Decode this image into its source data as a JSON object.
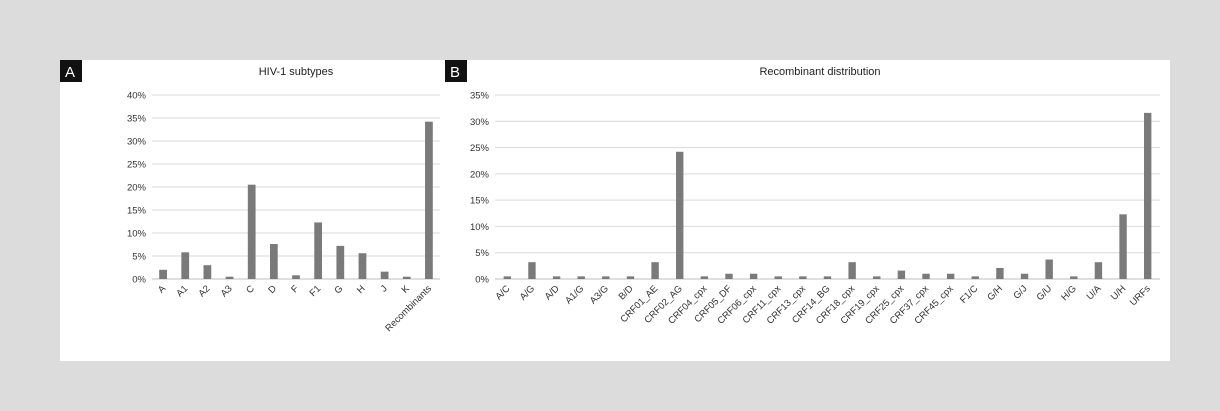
{
  "panels": [
    {
      "letter": "A",
      "title": "HIV-1 subtypes"
    },
    {
      "letter": "B",
      "title": "Recombinant distribution"
    }
  ],
  "chart_data": [
    {
      "type": "bar",
      "title": "HIV-1 subtypes",
      "xlabel": "",
      "ylabel": "",
      "categories": [
        "A",
        "A1",
        "A2",
        "A3",
        "C",
        "D",
        "F",
        "F1",
        "G",
        "H",
        "J",
        "K",
        "Recombinants"
      ],
      "values": [
        2.0,
        5.8,
        3.0,
        0.5,
        20.5,
        7.6,
        0.8,
        12.3,
        7.2,
        5.6,
        1.6,
        0.5,
        34.2
      ],
      "ylim": [
        0,
        40
      ],
      "yticks": [
        0,
        5,
        10,
        15,
        20,
        25,
        30,
        35,
        40
      ],
      "ytick_labels": [
        "0%",
        "5%",
        "10%",
        "15%",
        "20%",
        "25%",
        "30%",
        "35%",
        "40%"
      ],
      "grid": true,
      "bar_color": "#7a7a7a"
    },
    {
      "type": "bar",
      "title": "Recombinant distribution",
      "xlabel": "",
      "ylabel": "",
      "categories": [
        "A/C",
        "A/G",
        "A/D",
        "A1/G",
        "A3/G",
        "B/D",
        "CRF01_AE",
        "CRF02_AG",
        "CRF04_cpx",
        "CRF05_DF",
        "CRF06_cpx",
        "CRF11_cpx",
        "CRF13_cpx",
        "CRF14_BG",
        "CRF18_cpx",
        "CRF19_cpx",
        "CRF25_cpx",
        "CRF37_cpx",
        "CRF45_cpx",
        "F1/C",
        "G/H",
        "G/J",
        "G/U",
        "H/G",
        "U/A",
        "U/H",
        "URFs"
      ],
      "values": [
        0.5,
        3.2,
        0.5,
        0.5,
        0.5,
        0.5,
        3.2,
        24.2,
        0.5,
        1.0,
        1.0,
        0.5,
        0.5,
        0.5,
        3.2,
        0.5,
        1.6,
        1.0,
        1.0,
        0.5,
        2.1,
        1.0,
        3.7,
        0.5,
        3.2,
        12.3,
        31.6
      ],
      "ylim": [
        0,
        35
      ],
      "yticks": [
        0,
        5,
        10,
        15,
        20,
        25,
        30,
        35
      ],
      "ytick_labels": [
        "0%",
        "5%",
        "10%",
        "15%",
        "20%",
        "25%",
        "30%",
        "35%"
      ],
      "grid": true,
      "bar_color": "#7a7a7a"
    }
  ]
}
